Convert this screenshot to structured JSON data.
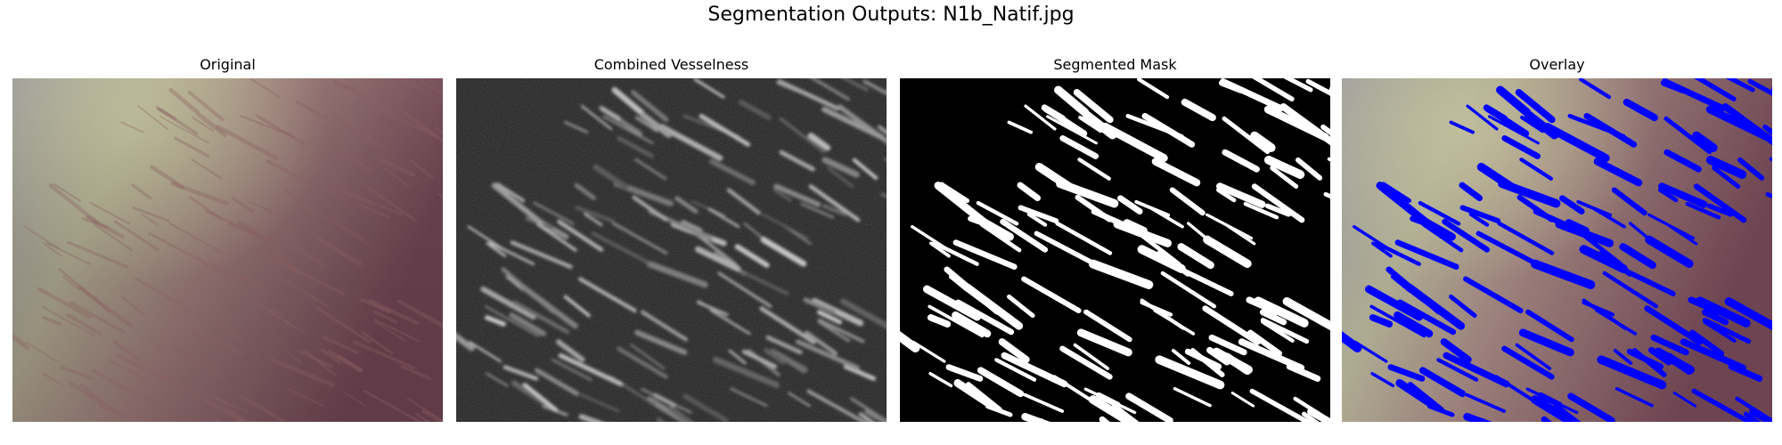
{
  "figure": {
    "title": "Segmentation Outputs: N1b_Natif.jpg"
  },
  "panels": [
    {
      "title": "Original"
    },
    {
      "title": "Combined Vesselness"
    },
    {
      "title": "Segmented Mask"
    },
    {
      "title": "Overlay"
    }
  ],
  "colors": {
    "background": "#ffffff",
    "original_tint_left": "#9c9a9e",
    "original_tint_center": "#b2ae90",
    "original_tint_right": "#7c4e5a",
    "vesselness_bg": "#1e1e1e",
    "mask_bg": "#000000",
    "mask_fg": "#ffffff",
    "overlay_fg": "#0000ff"
  }
}
